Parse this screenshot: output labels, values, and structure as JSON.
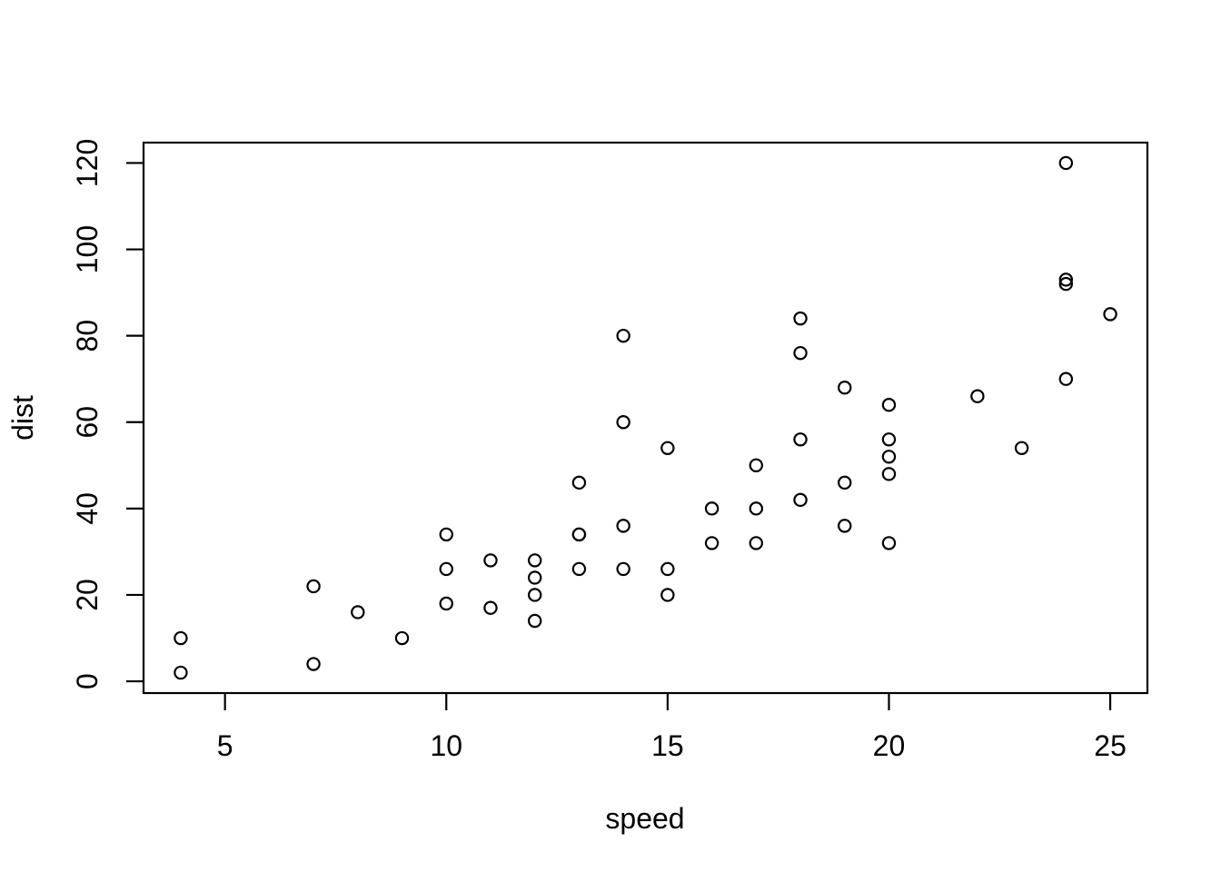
{
  "style": {
    "background_color": "#ffffff",
    "foreground_color": "#000000"
  },
  "chart_data": {
    "type": "scatter",
    "title": "",
    "xlabel": "speed",
    "ylabel": "dist",
    "marker": "open-circle",
    "grid": false,
    "legend": null,
    "xlim": [
      3.16,
      25.84
    ],
    "ylim": [
      -2.72,
      124.72
    ],
    "x_ticks": [
      5,
      10,
      15,
      20,
      25
    ],
    "y_ticks": [
      0,
      20,
      40,
      60,
      80,
      100,
      120
    ],
    "points": [
      {
        "speed": 4,
        "dist": 2
      },
      {
        "speed": 4,
        "dist": 10
      },
      {
        "speed": 7,
        "dist": 4
      },
      {
        "speed": 7,
        "dist": 22
      },
      {
        "speed": 8,
        "dist": 16
      },
      {
        "speed": 9,
        "dist": 10
      },
      {
        "speed": 10,
        "dist": 18
      },
      {
        "speed": 10,
        "dist": 26
      },
      {
        "speed": 10,
        "dist": 34
      },
      {
        "speed": 11,
        "dist": 17
      },
      {
        "speed": 11,
        "dist": 28
      },
      {
        "speed": 12,
        "dist": 14
      },
      {
        "speed": 12,
        "dist": 20
      },
      {
        "speed": 12,
        "dist": 24
      },
      {
        "speed": 12,
        "dist": 28
      },
      {
        "speed": 13,
        "dist": 26
      },
      {
        "speed": 13,
        "dist": 34
      },
      {
        "speed": 13,
        "dist": 34
      },
      {
        "speed": 13,
        "dist": 46
      },
      {
        "speed": 14,
        "dist": 26
      },
      {
        "speed": 14,
        "dist": 36
      },
      {
        "speed": 14,
        "dist": 60
      },
      {
        "speed": 14,
        "dist": 80
      },
      {
        "speed": 15,
        "dist": 20
      },
      {
        "speed": 15,
        "dist": 26
      },
      {
        "speed": 15,
        "dist": 54
      },
      {
        "speed": 16,
        "dist": 32
      },
      {
        "speed": 16,
        "dist": 40
      },
      {
        "speed": 17,
        "dist": 32
      },
      {
        "speed": 17,
        "dist": 40
      },
      {
        "speed": 17,
        "dist": 50
      },
      {
        "speed": 18,
        "dist": 42
      },
      {
        "speed": 18,
        "dist": 56
      },
      {
        "speed": 18,
        "dist": 76
      },
      {
        "speed": 18,
        "dist": 84
      },
      {
        "speed": 19,
        "dist": 36
      },
      {
        "speed": 19,
        "dist": 46
      },
      {
        "speed": 19,
        "dist": 68
      },
      {
        "speed": 20,
        "dist": 32
      },
      {
        "speed": 20,
        "dist": 48
      },
      {
        "speed": 20,
        "dist": 52
      },
      {
        "speed": 20,
        "dist": 56
      },
      {
        "speed": 20,
        "dist": 64
      },
      {
        "speed": 22,
        "dist": 66
      },
      {
        "speed": 23,
        "dist": 54
      },
      {
        "speed": 24,
        "dist": 70
      },
      {
        "speed": 24,
        "dist": 92
      },
      {
        "speed": 24,
        "dist": 93
      },
      {
        "speed": 24,
        "dist": 120
      },
      {
        "speed": 25,
        "dist": 85
      }
    ]
  }
}
